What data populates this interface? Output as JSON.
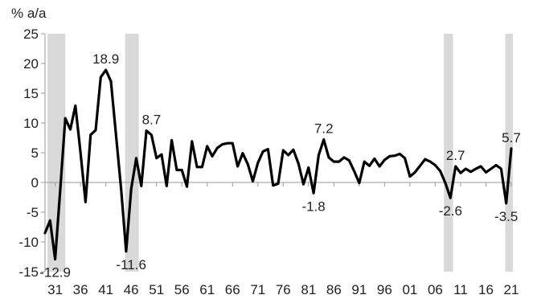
{
  "chart_data": {
    "type": "line",
    "title": "",
    "xlabel": "",
    "ylabel": "% a/a",
    "ylim": [
      -15,
      25
    ],
    "xlim": [
      1929,
      2021
    ],
    "yticks": [
      -15,
      -10,
      -5,
      0,
      5,
      10,
      15,
      20,
      25
    ],
    "xticks": [
      {
        "year": 1931,
        "label": "31"
      },
      {
        "year": 1936,
        "label": "36"
      },
      {
        "year": 1941,
        "label": "41"
      },
      {
        "year": 1946,
        "label": "46"
      },
      {
        "year": 1951,
        "label": "51"
      },
      {
        "year": 1956,
        "label": "56"
      },
      {
        "year": 1961,
        "label": "61"
      },
      {
        "year": 1966,
        "label": "66"
      },
      {
        "year": 1971,
        "label": "71"
      },
      {
        "year": 1976,
        "label": "76"
      },
      {
        "year": 1981,
        "label": "81"
      },
      {
        "year": 1986,
        "label": "86"
      },
      {
        "year": 1991,
        "label": "91"
      },
      {
        "year": 1996,
        "label": "96"
      },
      {
        "year": 2001,
        "label": "01"
      },
      {
        "year": 2006,
        "label": "06"
      },
      {
        "year": 2011,
        "label": "11"
      },
      {
        "year": 2016,
        "label": "16"
      },
      {
        "year": 2021,
        "label": "21"
      }
    ],
    "recession_shading": [
      {
        "start": 1929.5,
        "end": 1933.0
      },
      {
        "start": 1944.8,
        "end": 1947.5
      },
      {
        "start": 2007.7,
        "end": 2009.5
      },
      {
        "start": 2019.8,
        "end": 2021.3
      }
    ],
    "series": [
      {
        "x": [
          1929,
          1930,
          1931,
          1932,
          1933,
          1934,
          1935,
          1936,
          1937,
          1938,
          1939,
          1940,
          1941,
          1942,
          1943,
          1944,
          1945,
          1946,
          1947,
          1948,
          1949,
          1950,
          1951,
          1952,
          1953,
          1954,
          1955,
          1956,
          1957,
          1958,
          1959,
          1960,
          1961,
          1962,
          1963,
          1964,
          1965,
          1966,
          1967,
          1968,
          1969,
          1970,
          1971,
          1972,
          1973,
          1974,
          1975,
          1976,
          1977,
          1978,
          1979,
          1980,
          1981,
          1982,
          1983,
          1984,
          1985,
          1986,
          1987,
          1988,
          1989,
          1990,
          1991,
          1992,
          1993,
          1994,
          1995,
          1996,
          1997,
          1998,
          1999,
          2000,
          2001,
          2002,
          2003,
          2004,
          2005,
          2006,
          2007,
          2008,
          2009,
          2010,
          2011,
          2012,
          2013,
          2014,
          2015,
          2016,
          2017,
          2018,
          2019,
          2020,
          2021
        ],
        "values": [
          -8.5,
          -6.4,
          -12.9,
          -1.3,
          10.8,
          8.9,
          12.9,
          5.1,
          -3.3,
          8.0,
          8.8,
          17.7,
          18.9,
          17.0,
          8.0,
          -1.0,
          -11.6,
          -1.1,
          4.1,
          -0.6,
          8.7,
          8.0,
          4.1,
          4.7,
          -0.6,
          7.1,
          2.1,
          2.1,
          -0.7,
          6.9,
          2.6,
          2.6,
          6.1,
          4.4,
          5.8,
          6.4,
          6.6,
          6.6,
          2.7,
          4.9,
          3.1,
          0.2,
          3.3,
          5.2,
          5.6,
          -0.5,
          -0.2,
          5.4,
          4.6,
          5.5,
          3.2,
          -0.3,
          2.5,
          -1.8,
          4.6,
          7.2,
          4.2,
          3.5,
          3.5,
          4.2,
          3.7,
          1.9,
          -0.1,
          3.5,
          2.8,
          4.0,
          2.7,
          3.8,
          4.4,
          4.5,
          4.8,
          4.1,
          1.0,
          1.7,
          2.8,
          3.9,
          3.5,
          2.9,
          1.9,
          -0.1,
          -2.6,
          2.7,
          1.6,
          2.3,
          1.8,
          2.3,
          2.7,
          1.7,
          2.3,
          2.9,
          2.3,
          -3.5,
          5.7
        ]
      }
    ],
    "annotations": [
      {
        "text": "-12.9",
        "x": 1931,
        "y": -12.9
      },
      {
        "text": "18.9",
        "x": 1941,
        "y": 18.9
      },
      {
        "text": "-11.6",
        "x": 1946,
        "y": -11.6
      },
      {
        "text": "8.7",
        "x": 1950,
        "y": 8.7
      },
      {
        "text": "-1.8",
        "x": 1982,
        "y": -1.8
      },
      {
        "text": "7.2",
        "x": 1984,
        "y": 7.2
      },
      {
        "text": "-2.6",
        "x": 2009,
        "y": -2.6
      },
      {
        "text": "2.7",
        "x": 2010,
        "y": 2.7
      },
      {
        "text": "-3.5",
        "x": 2020,
        "y": -3.5
      },
      {
        "text": "5.7",
        "x": 2021,
        "y": 5.7
      }
    ],
    "grid": false,
    "colors": {
      "line": "#000000",
      "shading": "#d9d9d9",
      "axis": "#999999",
      "text": "#222222"
    }
  }
}
